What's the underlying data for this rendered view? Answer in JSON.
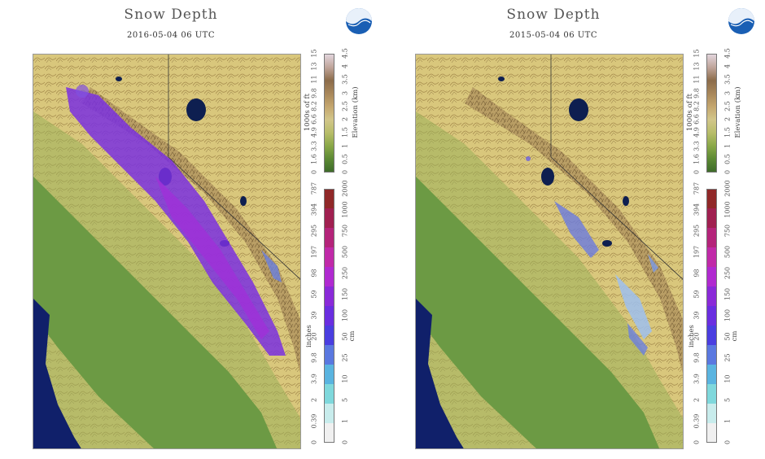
{
  "panels": [
    {
      "title": "Snow Depth",
      "date": "2016-05-04 06 UTC",
      "snow": "heavy"
    },
    {
      "title": "Snow Depth",
      "date": "2015-05-04 06 UTC",
      "snow": "light"
    }
  ],
  "logo_icon": "noaa-logo-icon",
  "elevation_legend": {
    "left_label": "1000s of ft",
    "right_label": "Elevation (km)",
    "ft_ticks": [
      "0",
      "1.6",
      "3.3",
      "4.9",
      "6.6",
      "8.2",
      "9.8",
      "11",
      "13",
      "15"
    ],
    "km_ticks": [
      "0",
      "0.5",
      "1",
      "1.5",
      "2",
      "2.5",
      "3",
      "3.5",
      "4",
      "4.5"
    ],
    "colors": [
      "#3e6b2a",
      "#5d8a34",
      "#8aa848",
      "#b8bd6a",
      "#d2c68a",
      "#c4a66e",
      "#a8875a",
      "#8c6c4a",
      "#bfa49a",
      "#e2d4dc"
    ]
  },
  "snow_legend": {
    "left_label": "inches",
    "right_label": "cm",
    "in_ticks": [
      "0",
      "0.39",
      "2",
      "3.9",
      "9.8",
      "20",
      "39",
      "59",
      "98",
      "197",
      "295",
      "394",
      "787"
    ],
    "cm_ticks": [
      "0",
      "1",
      "5",
      "10",
      "25",
      "50",
      "100",
      "150",
      "250",
      "500",
      "750",
      "1000",
      "2000"
    ],
    "colors": [
      "#f0f0f0",
      "#c8ecec",
      "#7fd8dc",
      "#5ab4e0",
      "#5a78e0",
      "#4a3ee0",
      "#6a2ee0",
      "#8a2ad8",
      "#b02ad0",
      "#c02aa8",
      "#b4247a",
      "#a02050",
      "#902828"
    ]
  }
}
